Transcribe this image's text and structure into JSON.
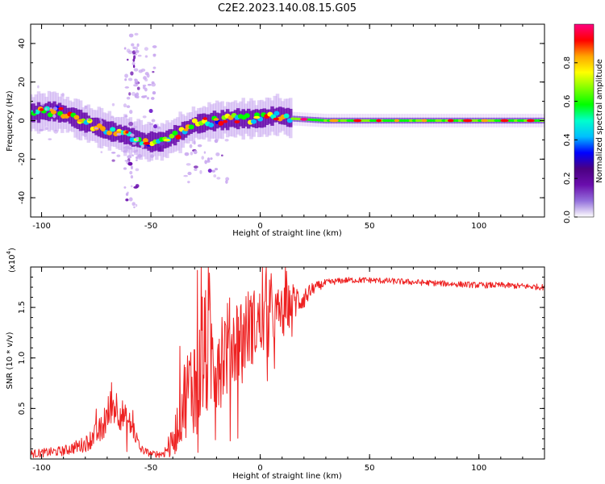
{
  "title": "C2E2.2023.140.08.15.G05",
  "chart_data": [
    {
      "type": "heatmap",
      "panel": "spectrogram",
      "xlabel": "Height of straight line (km)",
      "ylabel": "Frequency (Hz)",
      "xlim": [
        -105,
        130
      ],
      "ylim": [
        -50,
        50
      ],
      "xticks": [
        -100,
        -50,
        0,
        50,
        100
      ],
      "xtick_labels": [
        "-100",
        "-50",
        "0",
        "50",
        "100"
      ],
      "yticks": [
        -40,
        -20,
        0,
        20,
        40
      ],
      "ytick_labels": [
        "-40",
        "-20",
        "0",
        "20",
        "40"
      ],
      "ridge_center_hz": [
        {
          "x": -103,
          "y": 4
        },
        {
          "x": -95,
          "y": 5
        },
        {
          "x": -88,
          "y": 3
        },
        {
          "x": -80,
          "y": -1
        },
        {
          "x": -70,
          "y": -5
        },
        {
          "x": -60,
          "y": -8
        },
        {
          "x": -52,
          "y": -11
        },
        {
          "x": -45,
          "y": -11
        },
        {
          "x": -38,
          "y": -7
        },
        {
          "x": -30,
          "y": -2
        },
        {
          "x": -20,
          "y": 0
        },
        {
          "x": -10,
          "y": 1
        },
        {
          "x": 0,
          "y": 1
        },
        {
          "x": 8,
          "y": 3
        },
        {
          "x": 15,
          "y": 1
        },
        {
          "x": 30,
          "y": 0
        },
        {
          "x": 130,
          "y": 0
        }
      ],
      "colorbar": {
        "label": "Normalized spectral amplitude",
        "range": [
          0,
          1
        ],
        "ticks": [
          0.0,
          0.2,
          0.4,
          0.6,
          0.8
        ],
        "tick_labels": [
          "0.0",
          "0.2",
          "0.4",
          "0.6",
          "0.8"
        ],
        "colors": [
          "#ffffff",
          "#9370db",
          "#6a0dad",
          "#4b0082",
          "#0000ff",
          "#00bfff",
          "#00ffcc",
          "#00ff00",
          "#7fff00",
          "#ffff00",
          "#ffa500",
          "#ff0000",
          "#ff0080"
        ]
      }
    },
    {
      "type": "line",
      "panel": "snr",
      "xlabel": "Height of straight line (km)",
      "ylabel": "SNR (10 * v/v)",
      "scale_label": "(x10",
      "scale_exp": "4",
      "scale_close": ")",
      "xlim": [
        -105,
        130
      ],
      "ylim": [
        0,
        1.9
      ],
      "xticks": [
        -100,
        -50,
        0,
        50,
        100
      ],
      "xtick_labels": [
        "-100",
        "-50",
        "0",
        "50",
        "100"
      ],
      "yticks": [
        0.5,
        1.0,
        1.5
      ],
      "ytick_labels": [
        "0.5",
        "1.0",
        "1.5"
      ],
      "line_color": "#ee2222",
      "envelope": {
        "x": [
          -105,
          -90,
          -80,
          -72,
          -68,
          -65,
          -62,
          -58,
          -55,
          -50,
          -45,
          -40,
          -35,
          -30,
          -25,
          -20,
          -15,
          -10,
          -5,
          0,
          5,
          10,
          15,
          20,
          25,
          30,
          35,
          40,
          50,
          60,
          70,
          80,
          90,
          100,
          110,
          120,
          130
        ],
        "y": [
          0.05,
          0.08,
          0.15,
          0.3,
          0.55,
          0.5,
          0.4,
          0.3,
          0.1,
          0.05,
          0.05,
          0.15,
          0.6,
          0.8,
          1.0,
          1.05,
          1.1,
          1.2,
          1.3,
          1.35,
          1.4,
          1.45,
          1.55,
          1.6,
          1.7,
          1.74,
          1.76,
          1.77,
          1.77,
          1.76,
          1.75,
          1.74,
          1.73,
          1.72,
          1.72,
          1.71,
          1.7
        ],
        "noise": [
          0.04,
          0.05,
          0.08,
          0.15,
          0.2,
          0.2,
          0.15,
          0.12,
          0.05,
          0.03,
          0.04,
          0.15,
          0.4,
          0.55,
          0.65,
          0.6,
          0.5,
          0.45,
          0.4,
          0.35,
          0.3,
          0.25,
          0.2,
          0.12,
          0.05,
          0.04,
          0.03,
          0.03,
          0.03,
          0.03,
          0.03,
          0.03,
          0.03,
          0.03,
          0.03,
          0.03,
          0.03
        ]
      }
    }
  ]
}
